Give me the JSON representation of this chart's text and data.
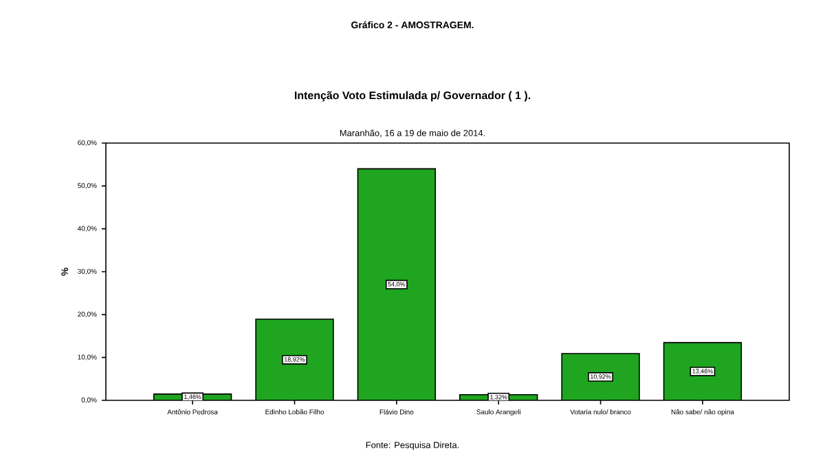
{
  "chart_data": {
    "type": "bar",
    "title": "Gráfico  2  -  AMOSTRAGEM.",
    "subtitle": "Intenção Voto Estimulada p/ Governador  ( 1 ).",
    "annotations": [
      "Maranhão, 16 a 19 de maio de 2014.",
      "Fonte: Pesquisa Direta."
    ],
    "ylabel": "%",
    "categories": [
      "Antônio Pedrosa",
      "Edinho Lobão Filho",
      "Flávio Dino",
      "Saulo Arangeli",
      "Votaria nulo/ branco",
      "Não sabe/ não opina"
    ],
    "values": [
      1.46,
      18.92,
      54.0,
      1.32,
      10.92,
      13.46
    ],
    "value_labels": [
      "1,46%",
      "18,92%",
      "54,0%",
      "1,32%",
      "10,92%",
      "13,46%"
    ],
    "color": "#1fa51f",
    "ylim": [
      0,
      60
    ],
    "yticks": [
      {
        "value": 0,
        "label": "0,0%"
      },
      {
        "value": 10,
        "label": "10,0%"
      },
      {
        "value": 20,
        "label": "20,0%"
      },
      {
        "value": 30,
        "label": "30,0%"
      },
      {
        "value": 40,
        "label": "40,0%"
      },
      {
        "value": 50,
        "label": "50,0%"
      },
      {
        "value": 60,
        "label": "60,0%"
      }
    ],
    "grid": false
  }
}
